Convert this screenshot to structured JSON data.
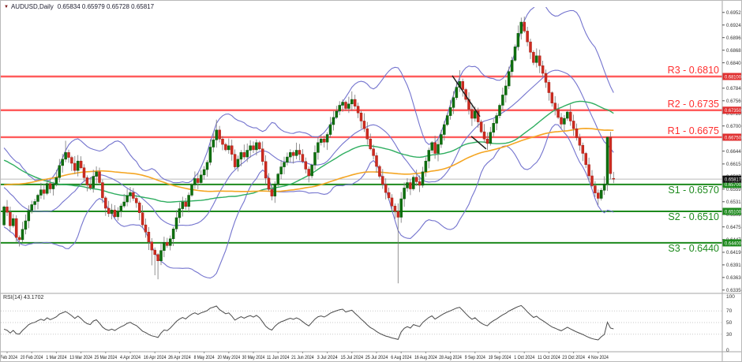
{
  "window": {
    "marker": "▼",
    "symbol_period": "AUDUSD,Daily",
    "ohlc": "0.65834 0.65979 0.65728 0.65817"
  },
  "colors": {
    "bull": "#0E6F0E",
    "bull_stroke": "#0A5A0A",
    "bear": "#CE2B20",
    "bear_stroke": "#A82218",
    "wick": "#777777",
    "bollinger": "#7373CE",
    "sma_fast": "#2FAE60",
    "sma_slow": "#F5A623",
    "resistance_line": "#FF5C5C",
    "resistance_text": "#FF2E2E",
    "resistance_tag": "#E03030",
    "support_line": "#1D8A1D",
    "support_text": "#1D8A1D",
    "support_tag": "#1D8A1D",
    "current_line": "#BBBBBB",
    "current_tag_bg": "#111111",
    "rsi_line": "#4A4A4A",
    "grid_dotted": "#C9C9C9",
    "axis_text": "#333333",
    "frame": "#A6A6A6",
    "trendline": "#1A1A1A"
  },
  "levels": [
    {
      "id": "R3",
      "label": "R3 - 0.6810",
      "price": 0.681,
      "tag": "0.68100",
      "kind": "resistance"
    },
    {
      "id": "R2",
      "label": "R2 - 0.6735",
      "price": 0.6735,
      "tag": "0.67350",
      "kind": "resistance"
    },
    {
      "id": "R1",
      "label": "R1 - 0.6675",
      "price": 0.6675,
      "tag": "0.66750",
      "kind": "resistance"
    },
    {
      "id": "S1",
      "label": "S1 - 0.6570",
      "price": 0.657,
      "tag": "0.65700",
      "kind": "support"
    },
    {
      "id": "S2",
      "label": "S2 - 0.6510",
      "price": 0.651,
      "tag": "0.65100",
      "kind": "support"
    },
    {
      "id": "S3",
      "label": "S3 - 0.6440",
      "price": 0.644,
      "tag": "0.64400",
      "kind": "support"
    }
  ],
  "current_price": {
    "value": 0.65817,
    "tag": "0.65817"
  },
  "y_axis": {
    "labels": [
      "0.69525",
      "0.69245",
      "0.68965",
      "0.68685",
      "0.68405",
      "0.67840",
      "0.67560",
      "0.67280",
      "0.67000",
      "0.66440",
      "0.66155",
      "0.65875",
      "0.65595",
      "0.65315",
      "0.65035",
      "0.64755",
      "0.64475",
      "0.64190",
      "0.63910",
      "0.63630",
      "0.63350"
    ]
  },
  "x_axis": {
    "labels": [
      "8 Feb 2024",
      "20 Feb 2024",
      "1 Mar 2024",
      "13 Mar 2024",
      "25 Mar 2024",
      "4 Apr 2024",
      "16 Apr 2024",
      "26 Apr 2024",
      "8 May 2024",
      "20 May 2024",
      "30 May 2024",
      "11 Jun 2024",
      "21 Jun 2024",
      "3 Jul 2024",
      "15 Jul 2024",
      "25 Jul 2024",
      "6 Aug 2024",
      "16 Aug 2024",
      "28 Aug 2024",
      "9 Sep 2024",
      "19 Sep 2024",
      "1 Oct 2024",
      "11 Oct 2024",
      "23 Oct 2024",
      "4 Nov 2024"
    ]
  },
  "rsi_panel": {
    "label": "RSI(14) 43.1702",
    "period": 14,
    "value": 43.1702,
    "scale_labels": [
      "100",
      "70",
      "50",
      "30",
      "0"
    ],
    "guide_levels": [
      70,
      50,
      30
    ]
  },
  "indicators": {
    "bollinger_period": 20,
    "bollinger_dev": 2,
    "ma_fast_period": 50,
    "ma_slow_period": 100
  },
  "annotations": {
    "trendlines": [
      {
        "i1": 145.6,
        "p1": 0.6812,
        "i2": 154.6,
        "p2": 0.6721
      },
      {
        "i1": 151.8,
        "p1": 0.6677,
        "i2": 156.6,
        "p2": 0.6649
      }
    ]
  },
  "chart_data": {
    "type": "candlestick",
    "symbol": "AUDUSD",
    "timeframe": "Daily",
    "title": "AUDUSD,Daily",
    "ylim": [
      0.6335,
      0.69525
    ],
    "rsi_range": [
      0,
      100
    ],
    "last_ohlc": {
      "o": 0.65834,
      "h": 0.65979,
      "l": 0.65728,
      "c": 0.65817
    },
    "open_before_window": 0.648,
    "closes": [
      0.652,
      0.6508,
      0.6478,
      0.6494,
      0.6452,
      0.6447,
      0.647,
      0.6489,
      0.6512,
      0.6525,
      0.6532,
      0.6546,
      0.6558,
      0.655,
      0.6572,
      0.656,
      0.6571,
      0.6585,
      0.6612,
      0.6626,
      0.6641,
      0.663,
      0.6617,
      0.6601,
      0.6622,
      0.6607,
      0.6585,
      0.6569,
      0.6562,
      0.6588,
      0.6598,
      0.6574,
      0.654,
      0.6517,
      0.6505,
      0.6513,
      0.6498,
      0.6511,
      0.6522,
      0.6531,
      0.6545,
      0.6552,
      0.6539,
      0.6529,
      0.6507,
      0.648,
      0.6464,
      0.6442,
      0.6424,
      0.6414,
      0.64,
      0.6423,
      0.6441,
      0.6434,
      0.6449,
      0.6471,
      0.6496,
      0.6516,
      0.6531,
      0.6521,
      0.6546,
      0.6569,
      0.6583,
      0.6574,
      0.6591,
      0.6603,
      0.6619,
      0.6653,
      0.6669,
      0.6691,
      0.6671,
      0.6659,
      0.6647,
      0.6656,
      0.6637,
      0.6609,
      0.6626,
      0.6641,
      0.6631,
      0.6646,
      0.6656,
      0.6647,
      0.6663,
      0.6649,
      0.6621,
      0.6584,
      0.6559,
      0.6544,
      0.6571,
      0.6593,
      0.6609,
      0.6619,
      0.6631,
      0.6641,
      0.6634,
      0.6646,
      0.6637,
      0.6621,
      0.6604,
      0.6589,
      0.6613,
      0.6641,
      0.6663,
      0.6671,
      0.6664,
      0.6681,
      0.6703,
      0.6719,
      0.6733,
      0.6746,
      0.6753,
      0.6739,
      0.6749,
      0.6759,
      0.6744,
      0.6729,
      0.6711,
      0.6694,
      0.6671,
      0.6649,
      0.6634,
      0.661,
      0.6588,
      0.657,
      0.6552,
      0.654,
      0.6522,
      0.651,
      0.6497,
      0.6538,
      0.6562,
      0.6574,
      0.656,
      0.6586,
      0.6576,
      0.6568,
      0.6598,
      0.6622,
      0.6646,
      0.6663,
      0.6639,
      0.6659,
      0.6681,
      0.6703,
      0.6723,
      0.6741,
      0.6763,
      0.6786,
      0.6799,
      0.6781,
      0.6759,
      0.6737,
      0.6717,
      0.6733,
      0.6709,
      0.6687,
      0.6671,
      0.6661,
      0.6686,
      0.6706,
      0.6723,
      0.6746,
      0.6769,
      0.6789,
      0.6821,
      0.6846,
      0.6876,
      0.6906,
      0.6931,
      0.6911,
      0.6887,
      0.6864,
      0.6841,
      0.6856,
      0.6834,
      0.6817,
      0.6797,
      0.6774,
      0.6751,
      0.6737,
      0.6719,
      0.6704,
      0.6717,
      0.6731,
      0.6711,
      0.6694,
      0.6674,
      0.6657,
      0.6639,
      0.6614,
      0.6589,
      0.6567,
      0.6551,
      0.6539,
      0.6557,
      0.6571,
      0.6675,
      0.6594,
      0.65817
    ],
    "wick_overrides": {
      "20": {
        "h": 0.6667
      },
      "48": {
        "l": 0.639
      },
      "49": {
        "l": 0.6368
      },
      "50": {
        "l": 0.6359
      },
      "69": {
        "h": 0.6714
      },
      "113": {
        "h": 0.6777
      },
      "128": {
        "l": 0.635
      },
      "148": {
        "h": 0.6824
      },
      "168": {
        "h": 0.6941
      },
      "196": {
        "h": 0.6676
      },
      "197": {
        "l": 0.6581
      },
      "198": {
        "o": 0.65834,
        "h": 0.65979,
        "l": 0.65728
      }
    },
    "history_closes": [
      0.644,
      0.6452,
      0.6428,
      0.644,
      0.6415,
      0.6427,
      0.6402,
      0.6414,
      0.6392,
      0.6404,
      0.639,
      0.6402,
      0.6418,
      0.6408,
      0.6428,
      0.6438,
      0.6448,
      0.644,
      0.6462,
      0.6454,
      0.6478,
      0.647,
      0.6494,
      0.6486,
      0.6508,
      0.65,
      0.6522,
      0.6514,
      0.653,
      0.6522,
      0.6538,
      0.653,
      0.6552,
      0.6544,
      0.6566,
      0.6558,
      0.658,
      0.6572,
      0.6594,
      0.6586,
      0.6608,
      0.66,
      0.6622,
      0.6614,
      0.6636,
      0.6628,
      0.6648,
      0.664,
      0.666,
      0.6652,
      0.667,
      0.6662,
      0.6678,
      0.6668,
      0.6682,
      0.6672,
      0.6684,
      0.6674,
      0.6686,
      0.6676,
      0.6688,
      0.6678,
      0.6688,
      0.6676,
      0.6664,
      0.6674,
      0.666,
      0.667,
      0.6656,
      0.6666,
      0.6652,
      0.6662,
      0.6648,
      0.6658,
      0.6644,
      0.6654,
      0.664,
      0.665,
      0.6636,
      0.6646,
      0.664,
      0.6628,
      0.6636,
      0.661,
      0.6618,
      0.6592,
      0.66,
      0.6578,
      0.6586,
      0.656,
      0.6568,
      0.6542,
      0.6552,
      0.6564,
      0.6575,
      0.6548,
      0.6518,
      0.65,
      0.649,
      0.648
    ]
  }
}
